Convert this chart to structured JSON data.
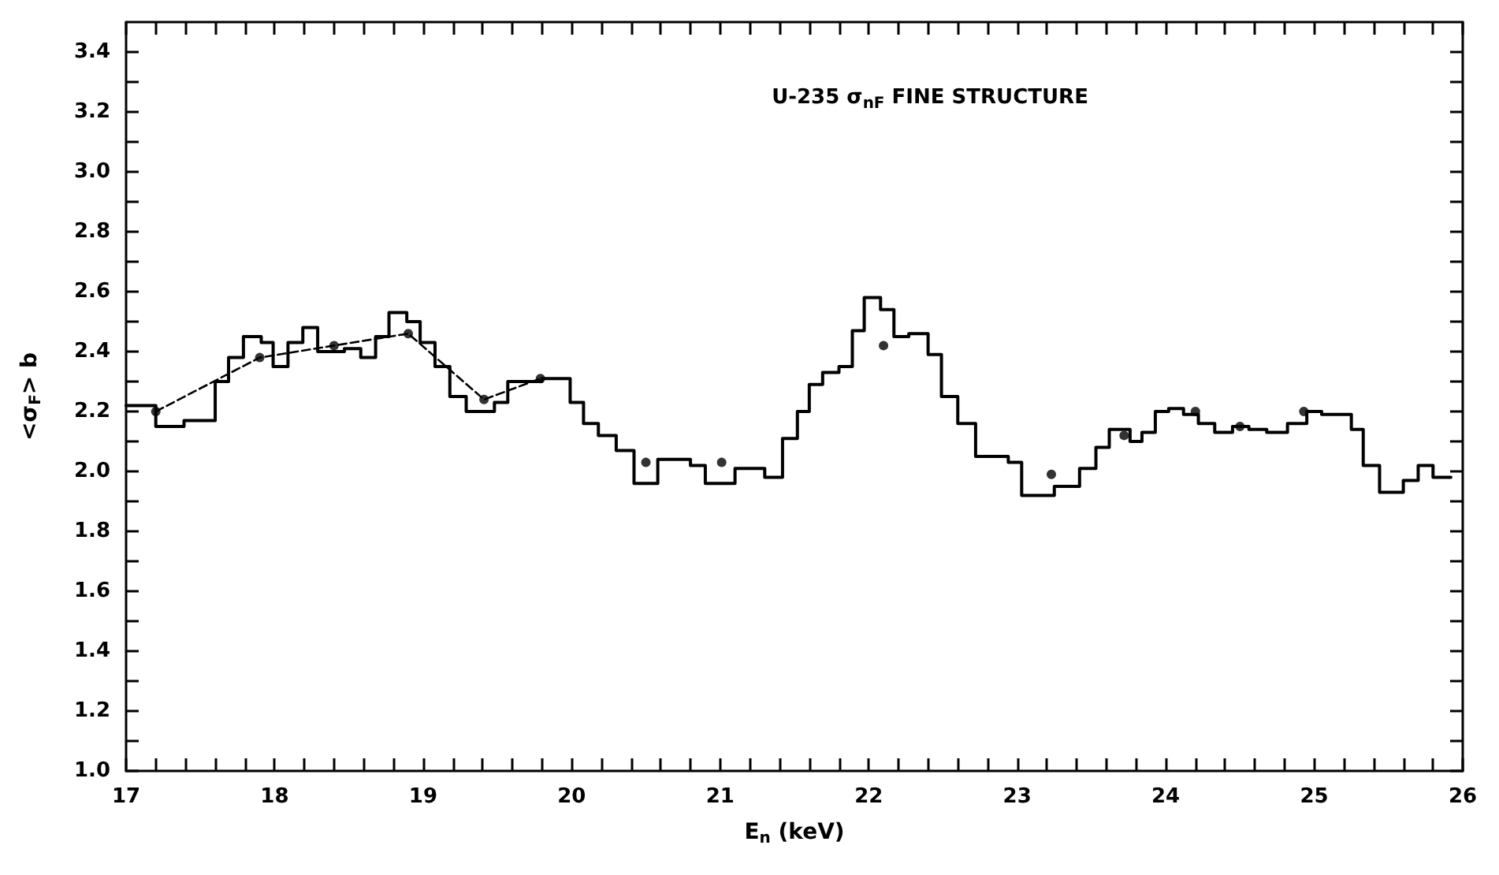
{
  "chart_data": {
    "type": "step",
    "title": "U-235 σ$_{nF}$ FINE STRUCTURE",
    "xlabel": "E$_{n}$ (keV)",
    "ylabel": "<σ$_{F}$> b",
    "xlim": [
      17,
      26
    ],
    "ylim": [
      1.0,
      3.5
    ],
    "xticks": [
      17,
      {
        "value": 17.2,
        "label": null
      },
      {
        "value": 17.4,
        "label": null
      },
      {
        "value": 17.6,
        "label": null
      },
      {
        "value": 17.8,
        "label": null
      },
      18,
      {
        "value": 18.2,
        "label": null
      },
      {
        "value": 18.4,
        "label": null
      },
      {
        "value": 18.6,
        "label": null
      },
      {
        "value": 18.8,
        "label": null
      },
      19,
      {
        "value": 19.2,
        "label": null
      },
      {
        "value": 19.4,
        "label": null
      },
      {
        "value": 19.6,
        "label": null
      },
      {
        "value": 19.8,
        "label": null
      },
      20,
      {
        "value": 20.2,
        "label": null
      },
      {
        "value": 20.4,
        "label": null
      },
      {
        "value": 20.6,
        "label": null
      },
      {
        "value": 20.8,
        "label": null
      },
      21,
      {
        "value": 21.2,
        "label": null
      },
      {
        "value": 21.4,
        "label": null
      },
      {
        "value": 21.6,
        "label": null
      },
      {
        "value": 21.8,
        "label": null
      },
      22,
      {
        "value": 22.2,
        "label": null
      },
      {
        "value": 22.4,
        "label": null
      },
      {
        "value": 22.6,
        "label": null
      },
      {
        "value": 22.8,
        "label": null
      },
      23,
      {
        "value": 23.2,
        "label": null
      },
      {
        "value": 23.4,
        "label": null
      },
      {
        "value": 23.6,
        "label": null
      },
      {
        "value": 23.8,
        "label": null
      },
      24,
      {
        "value": 24.2,
        "label": null
      },
      {
        "value": 24.4,
        "label": null
      },
      {
        "value": 24.6,
        "label": null
      },
      {
        "value": 24.8,
        "label": null
      },
      25,
      {
        "value": 25.2,
        "label": null
      },
      {
        "value": 25.4,
        "label": null
      },
      {
        "value": 25.6,
        "label": null
      },
      {
        "value": 25.8,
        "label": null
      },
      26
    ],
    "yticks": [
      {
        "value": 1.0,
        "label": "1.0"
      },
      {
        "value": 1.1,
        "label": null
      },
      1.2,
      {
        "value": 1.3,
        "label": null
      },
      1.4,
      {
        "value": 1.5,
        "label": null
      },
      1.6,
      {
        "value": 1.7,
        "label": null
      },
      1.8,
      {
        "value": 1.9,
        "label": null
      },
      {
        "value": 2.0,
        "label": "2.0"
      },
      {
        "value": 2.1,
        "label": null
      },
      2.2,
      {
        "value": 2.3,
        "label": null
      },
      2.4,
      {
        "value": 2.5,
        "label": null
      },
      2.6,
      {
        "value": 2.7,
        "label": null
      },
      2.8,
      {
        "value": 2.9,
        "label": null
      },
      {
        "value": 3.0,
        "label": "3.0"
      },
      {
        "value": 3.1,
        "label": null
      },
      3.2,
      {
        "value": 3.3,
        "label": null
      },
      3.4
    ],
    "grid": false,
    "series": [
      {
        "color": "#000000",
        "marker": "none",
        "line_style": "solid",
        "x": [
          17.0,
          17.2,
          17.39,
          17.6,
          17.69,
          17.79,
          17.91,
          17.99,
          18.09,
          18.19,
          18.29,
          18.47,
          18.58,
          18.68,
          18.77,
          18.89,
          18.98,
          19.08,
          19.18,
          19.29,
          19.48,
          19.57,
          19.8,
          19.99,
          20.08,
          20.18,
          20.3,
          20.42,
          20.58,
          20.8,
          20.9,
          21.1,
          21.3,
          21.42,
          21.52,
          21.6,
          21.69,
          21.8,
          21.89,
          21.97,
          22.08,
          22.17,
          22.27,
          22.4,
          22.49,
          22.6,
          22.72,
          22.94,
          23.03,
          23.25,
          23.42,
          23.53,
          23.62,
          23.76,
          23.84,
          23.93,
          24.02,
          24.12,
          24.22,
          24.33,
          24.45,
          24.56,
          24.68,
          24.82,
          24.95,
          25.05,
          25.25,
          25.33,
          25.44,
          25.6,
          25.7,
          25.8,
          25.92
        ],
        "values": [
          2.22,
          2.15,
          2.17,
          2.3,
          2.38,
          2.45,
          2.43,
          2.35,
          2.43,
          2.48,
          2.4,
          2.41,
          2.38,
          2.45,
          2.53,
          2.5,
          2.43,
          2.35,
          2.25,
          2.2,
          2.23,
          2.3,
          2.31,
          2.23,
          2.16,
          2.12,
          2.07,
          1.96,
          2.04,
          2.02,
          1.96,
          2.01,
          1.98,
          2.11,
          2.2,
          2.29,
          2.33,
          2.35,
          2.47,
          2.58,
          2.54,
          2.45,
          2.46,
          2.39,
          2.25,
          2.16,
          2.05,
          2.03,
          1.92,
          1.95,
          2.01,
          2.08,
          2.14,
          2.1,
          2.13,
          2.2,
          2.21,
          2.19,
          2.16,
          2.13,
          2.15,
          2.14,
          2.13,
          2.16,
          2.2,
          2.19,
          2.14,
          2.02,
          1.93,
          1.97,
          2.02,
          1.98,
          1.98
        ]
      },
      {
        "type": "line",
        "color": "#000000",
        "marker": "none",
        "line_style": "dashed",
        "x": [
          17.2,
          17.9,
          18.4,
          18.9,
          19.41,
          19.79
        ],
        "values": [
          2.2,
          2.38,
          2.42,
          2.46,
          2.24,
          2.31
        ]
      },
      {
        "type": "scatter",
        "color": "#000000",
        "marker": "circle",
        "x": [
          17.2,
          17.9,
          18.4,
          18.9,
          19.41,
          19.79,
          20.5,
          21.01,
          22.1,
          23.23,
          23.72,
          24.2,
          24.5,
          24.93
        ],
        "values": [
          2.2,
          2.38,
          2.42,
          2.46,
          2.24,
          2.31,
          2.03,
          2.03,
          2.42,
          1.99,
          2.12,
          2.2,
          2.15,
          2.2
        ]
      }
    ]
  }
}
